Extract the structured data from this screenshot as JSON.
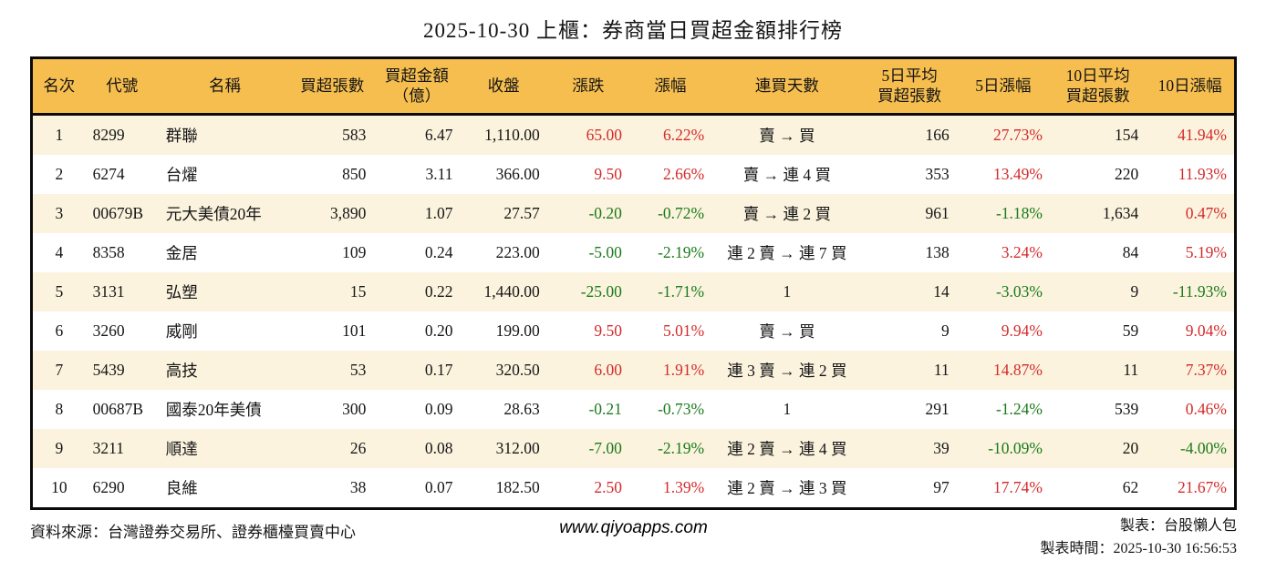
{
  "title": "2025-10-30 上櫃：券商當日買超金額排行榜",
  "colors": {
    "up": "#d42a2a",
    "down": "#1a7a1a",
    "header_bg": "#f6be4e",
    "row_alt_bg": "#fbf3de",
    "border": "#0a0a0a"
  },
  "chart_data": {
    "type": "table",
    "title": "2025-10-30 上櫃：券商當日買超金額排行榜",
    "columns": [
      "名次",
      "代號",
      "名稱",
      "買超張數",
      "買超金額\n（億）",
      "收盤",
      "漲跌",
      "漲幅",
      "連買天數",
      "5日平均\n買超張數",
      "5日漲幅",
      "10日平均\n買超張數",
      "10日漲幅"
    ],
    "rows": [
      [
        "1",
        "8299",
        "群聯",
        "583",
        "6.47",
        "1,110.00",
        "65.00",
        "6.22%",
        "賣 → 買",
        "166",
        "27.73%",
        "154",
        "41.94%"
      ],
      [
        "2",
        "6274",
        "台燿",
        "850",
        "3.11",
        "366.00",
        "9.50",
        "2.66%",
        "賣 → 連 4 買",
        "353",
        "13.49%",
        "220",
        "11.93%"
      ],
      [
        "3",
        "00679B",
        "元大美債20年",
        "3,890",
        "1.07",
        "27.57",
        "-0.20",
        "-0.72%",
        "賣 → 連 2 買",
        "961",
        "-1.18%",
        "1,634",
        "0.47%"
      ],
      [
        "4",
        "8358",
        "金居",
        "109",
        "0.24",
        "223.00",
        "-5.00",
        "-2.19%",
        "連 2 賣 → 連 7 買",
        "138",
        "3.24%",
        "84",
        "5.19%"
      ],
      [
        "5",
        "3131",
        "弘塑",
        "15",
        "0.22",
        "1,440.00",
        "-25.00",
        "-1.71%",
        "1",
        "14",
        "-3.03%",
        "9",
        "-11.93%"
      ],
      [
        "6",
        "3260",
        "威剛",
        "101",
        "0.20",
        "199.00",
        "9.50",
        "5.01%",
        "賣 → 買",
        "9",
        "9.94%",
        "59",
        "9.04%"
      ],
      [
        "7",
        "5439",
        "高技",
        "53",
        "0.17",
        "320.50",
        "6.00",
        "1.91%",
        "連 3 賣 → 連 2 買",
        "11",
        "14.87%",
        "11",
        "7.37%"
      ],
      [
        "8",
        "00687B",
        "國泰20年美債",
        "300",
        "0.09",
        "28.63",
        "-0.21",
        "-0.73%",
        "1",
        "291",
        "-1.24%",
        "539",
        "0.46%"
      ],
      [
        "9",
        "3211",
        "順達",
        "26",
        "0.08",
        "312.00",
        "-7.00",
        "-2.19%",
        "連 2 賣 → 連 4 買",
        "39",
        "-10.09%",
        "20",
        "-4.00%"
      ],
      [
        "10",
        "6290",
        "良維",
        "38",
        "0.07",
        "182.50",
        "2.50",
        "1.39%",
        "連 2 賣 → 連 3 買",
        "97",
        "17.74%",
        "62",
        "21.67%"
      ]
    ]
  },
  "footer": {
    "source": "資料來源：台灣證券交易所、證券櫃檯買賣中心",
    "website": "www.qiyoapps.com",
    "maker": "製表：台股懶人包",
    "made_at": "製表時間：2025-10-30 16:56:53"
  }
}
